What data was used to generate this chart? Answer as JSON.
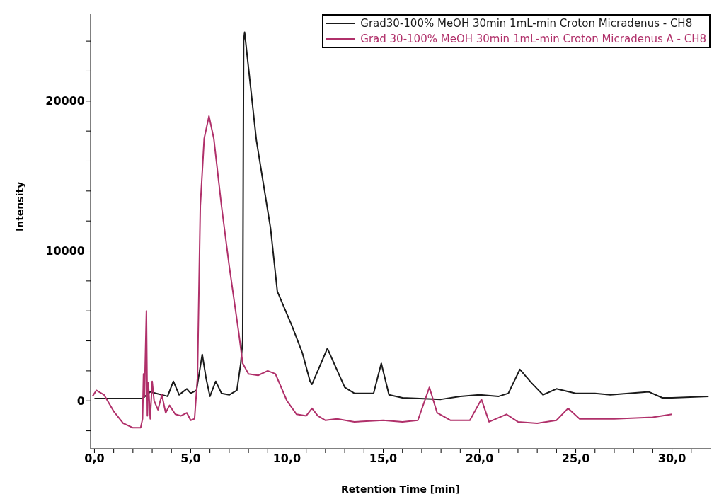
{
  "chart_data": {
    "type": "line",
    "xlabel": "Retention Time [min]",
    "ylabel": "Intensity",
    "xlim": [
      -0.2,
      32
    ],
    "ylim": [
      -3200,
      25800
    ],
    "xticks": [
      {
        "value": 0,
        "label": "0,0"
      },
      {
        "value": 1,
        "label": null
      },
      {
        "value": 2,
        "label": null
      },
      {
        "value": 3,
        "label": null
      },
      {
        "value": 4,
        "label": null
      },
      {
        "value": 5,
        "label": "5,0"
      },
      {
        "value": 6,
        "label": null
      },
      {
        "value": 7,
        "label": null
      },
      {
        "value": 8,
        "label": null
      },
      {
        "value": 9,
        "label": null
      },
      {
        "value": 10,
        "label": "10,0"
      },
      {
        "value": 11,
        "label": null
      },
      {
        "value": 12,
        "label": null
      },
      {
        "value": 13,
        "label": null
      },
      {
        "value": 14,
        "label": null
      },
      {
        "value": 15,
        "label": "15,0"
      },
      {
        "value": 16,
        "label": null
      },
      {
        "value": 17,
        "label": null
      },
      {
        "value": 18,
        "label": null
      },
      {
        "value": 19,
        "label": null
      },
      {
        "value": 20,
        "label": "20,0"
      },
      {
        "value": 21,
        "label": null
      },
      {
        "value": 22,
        "label": null
      },
      {
        "value": 23,
        "label": null
      },
      {
        "value": 24,
        "label": null
      },
      {
        "value": 25,
        "label": "25,0"
      },
      {
        "value": 26,
        "label": null
      },
      {
        "value": 27,
        "label": null
      },
      {
        "value": 28,
        "label": null
      },
      {
        "value": 29,
        "label": null
      },
      {
        "value": 30,
        "label": "30,0"
      },
      {
        "value": 31,
        "label": null
      }
    ],
    "yticks": [
      {
        "value": -2000,
        "label": null
      },
      0,
      {
        "value": 2000,
        "label": null
      },
      {
        "value": 4000,
        "label": null
      },
      {
        "value": 6000,
        "label": null
      },
      {
        "value": 8000,
        "label": null
      },
      10000,
      {
        "value": 12000,
        "label": null
      },
      {
        "value": 14000,
        "label": null
      },
      {
        "value": 16000,
        "label": null
      },
      {
        "value": 18000,
        "label": null
      },
      20000,
      {
        "value": 22000,
        "label": null
      },
      {
        "value": 24000,
        "label": null
      }
    ],
    "grid": false,
    "legend": "top right",
    "marker": "none",
    "line_style": "solid",
    "series": [
      {
        "name": "Grad30-100% MeOH 30min 1mL-min Croton Micradenus - CH8",
        "color": "#1a1a1a",
        "x": [
          0,
          2.5,
          2.9,
          3.2,
          3.8,
          4.1,
          4.4,
          4.8,
          5.0,
          5.3,
          5.6,
          5.8,
          6.0,
          6.3,
          6.6,
          7.0,
          7.4,
          7.6,
          7.7,
          7.75,
          7.8,
          8.41,
          9.15,
          9.5,
          10.26,
          10.8,
          11.2,
          11.3,
          12.1,
          13,
          13.5,
          14.5,
          14.9,
          15.3,
          16,
          18,
          19,
          20,
          21,
          21.5,
          22.1,
          22.7,
          23.3,
          24,
          25,
          26,
          26.8,
          28.8,
          29.5,
          30,
          31.9
        ],
        "values": [
          150,
          150,
          600,
          500,
          300,
          1300,
          400,
          800,
          500,
          700,
          3100,
          1500,
          300,
          1300,
          500,
          400,
          700,
          2500,
          4000,
          24000,
          24600,
          17400,
          11500,
          7300,
          5000,
          3200,
          1300,
          1100,
          3500,
          900,
          500,
          500,
          2500,
          400,
          200,
          100,
          300,
          400,
          300,
          500,
          2100,
          1200,
          400,
          800,
          500,
          500,
          400,
          600,
          200,
          200,
          300
        ]
      },
      {
        "name": "Grad 30-100% MeOH 30min 1mL-min Croton Micradenus A - CH8",
        "color": "#b0306a",
        "x": [
          -0.1,
          0.1,
          0.5,
          1.0,
          1.5,
          2.0,
          2.4,
          2.5,
          2.55,
          2.6,
          2.7,
          2.75,
          2.8,
          2.9,
          3.0,
          3.1,
          3.3,
          3.5,
          3.7,
          3.9,
          4.2,
          4.5,
          4.8,
          5.0,
          5.2,
          5.35,
          5.5,
          5.7,
          5.95,
          6.2,
          6.6,
          7.0,
          7.5,
          7.7,
          8.0,
          8.5,
          9.0,
          9.4,
          10.0,
          10.5,
          11.0,
          11.3,
          11.6,
          12.0,
          12.6,
          13.5,
          15,
          16,
          16.8,
          17.4,
          17.8,
          18.5,
          19.5,
          20.1,
          20.5,
          21.4,
          22,
          23,
          24,
          24.6,
          25.2,
          27,
          29,
          30
        ],
        "values": [
          300,
          700,
          400,
          -700,
          -1500,
          -1800,
          -1800,
          -1200,
          1800,
          300,
          6000,
          -1000,
          1200,
          -1200,
          1300,
          0,
          -600,
          400,
          -800,
          -300,
          -900,
          -1000,
          -800,
          -1300,
          -1200,
          1500,
          13000,
          17500,
          19000,
          17500,
          13000,
          9000,
          4500,
          2500,
          1800,
          1700,
          2000,
          1800,
          0,
          -900,
          -1000,
          -500,
          -1000,
          -1300,
          -1200,
          -1400,
          -1300,
          -1400,
          -1300,
          900,
          -800,
          -1300,
          -1300,
          100,
          -1400,
          -900,
          -1400,
          -1500,
          -1300,
          -500,
          -1200,
          -1200,
          -1100,
          -900
        ]
      }
    ]
  }
}
